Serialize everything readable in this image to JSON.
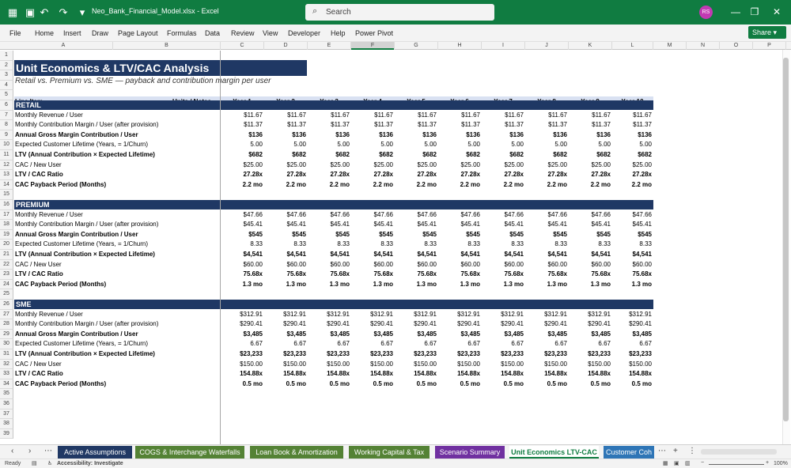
{
  "window": {
    "title": "Neo_Bank_Financial_Model.xlsx  -  Excel",
    "search_placeholder": "Search",
    "user_initials": "RS"
  },
  "menu": [
    "File",
    "Home",
    "Insert",
    "Draw",
    "Page Layout",
    "Formulas",
    "Data",
    "Review",
    "View",
    "Developer",
    "Help",
    "Power Pivot"
  ],
  "share_label": "Share",
  "columns": [
    "A",
    "B",
    "C",
    "D",
    "E",
    "F",
    "G",
    "H",
    "I",
    "J",
    "K",
    "L",
    "M",
    "N",
    "O",
    "P"
  ],
  "sheet": {
    "title": "Unit Economics & LTV/CAC Analysis",
    "subtitle": "Retail vs. Premium vs. SME — payback and contribution margin per user",
    "header": {
      "line_item": "Line Item",
      "units": "Units / Notes",
      "years": [
        "Year 1",
        "Year 2",
        "Year 3",
        "Year 4",
        "Year 5",
        "Year 6",
        "Year 7",
        "Year 8",
        "Year 9",
        "Year 10"
      ]
    },
    "sections": [
      {
        "name": "RETAIL",
        "rows": [
          {
            "label": "Monthly Revenue / User",
            "value": "$11.67",
            "bold": false
          },
          {
            "label": "Monthly Contribution Margin / User (after provision)",
            "value": "$11.37",
            "bold": false
          },
          {
            "label": "Annual Gross Margin Contribution / User",
            "value": "$136",
            "bold": true
          },
          {
            "label": "Expected Customer Lifetime (Years, = 1/Churn)",
            "value": "5.00",
            "bold": false
          },
          {
            "label": "LTV (Annual Contribution × Expected Lifetime)",
            "value": "$682",
            "bold": true
          },
          {
            "label": "CAC / New User",
            "value": "$25.00",
            "bold": false
          },
          {
            "label": "LTV / CAC Ratio",
            "value": "27.28x",
            "bold": true
          },
          {
            "label": "CAC Payback Period (Months)",
            "value": "2.2 mo",
            "bold": true
          }
        ]
      },
      {
        "name": "PREMIUM",
        "rows": [
          {
            "label": "Monthly Revenue / User",
            "value": "$47.66",
            "bold": false
          },
          {
            "label": "Monthly Contribution Margin / User (after provision)",
            "value": "$45.41",
            "bold": false
          },
          {
            "label": "Annual Gross Margin Contribution / User",
            "value": "$545",
            "bold": true
          },
          {
            "label": "Expected Customer Lifetime (Years, = 1/Churn)",
            "value": "8.33",
            "bold": false
          },
          {
            "label": "LTV (Annual Contribution × Expected Lifetime)",
            "value": "$4,541",
            "bold": true
          },
          {
            "label": "CAC / New User",
            "value": "$60.00",
            "bold": false
          },
          {
            "label": "LTV / CAC Ratio",
            "value": "75.68x",
            "bold": true
          },
          {
            "label": "CAC Payback Period (Months)",
            "value": "1.3 mo",
            "bold": true
          }
        ]
      },
      {
        "name": "SME",
        "rows": [
          {
            "label": "Monthly Revenue / User",
            "value": "$312.91",
            "bold": false
          },
          {
            "label": "Monthly Contribution Margin / User (after provision)",
            "value": "$290.41",
            "bold": false
          },
          {
            "label": "Annual Gross Margin Contribution / User",
            "value": "$3,485",
            "bold": true
          },
          {
            "label": "Expected Customer Lifetime (Years, = 1/Churn)",
            "value": "6.67",
            "bold": false
          },
          {
            "label": "LTV (Annual Contribution × Expected Lifetime)",
            "value": "$23,233",
            "bold": true
          },
          {
            "label": "CAC / New User",
            "value": "$150.00",
            "bold": false
          },
          {
            "label": "LTV / CAC Ratio",
            "value": "154.88x",
            "bold": true
          },
          {
            "label": "CAC Payback Period (Months)",
            "value": "0.5 mo",
            "bold": true
          }
        ]
      }
    ]
  },
  "tabs": [
    {
      "label": "Active Assumptions",
      "color": "#203864",
      "active": false
    },
    {
      "label": "COGS & Interchange Waterfalls",
      "color": "#548235",
      "active": false
    },
    {
      "label": "Loan Book & Amortization",
      "color": "#548235",
      "active": false
    },
    {
      "label": "Working Capital & Tax",
      "color": "#548235",
      "active": false
    },
    {
      "label": "Scenario Summary",
      "color": "#7030a0",
      "active": false
    },
    {
      "label": "Unit Economics LTV-CAC",
      "color": "#ffffff",
      "active": true
    },
    {
      "label": "Customer Coh",
      "color": "#2e75b6",
      "active": false
    }
  ],
  "status": {
    "ready": "Ready",
    "accessibility": "Accessibility: Investigate",
    "zoom": "100%"
  }
}
